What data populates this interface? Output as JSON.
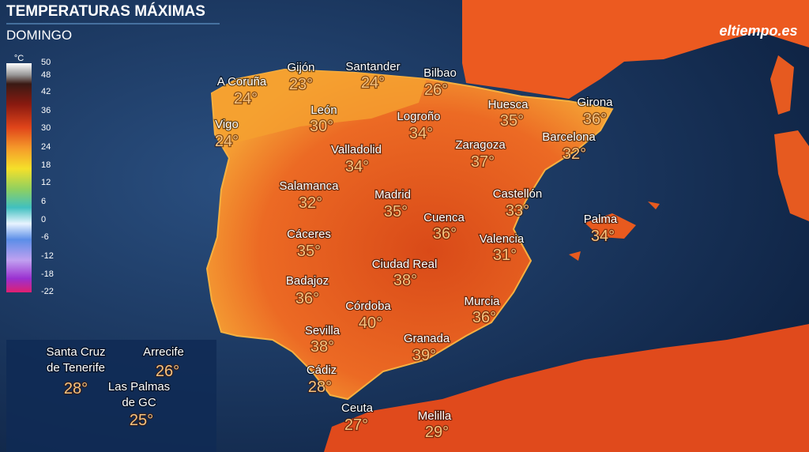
{
  "header": {
    "title": "TEMPERATURAS MÁXIMAS",
    "subtitle": "DOMINGO",
    "logo": "eltiempo.es"
  },
  "legend": {
    "unit": "°C",
    "ticks": [
      50,
      48,
      42,
      36,
      30,
      24,
      18,
      12,
      6,
      0,
      -6,
      -12,
      -18,
      -22
    ]
  },
  "cities": [
    {
      "name": "A Coruña",
      "temp": "24°"
    },
    {
      "name": "Gijón",
      "temp": "23°"
    },
    {
      "name": "Santander",
      "temp": "24°"
    },
    {
      "name": "Bilbao",
      "temp": "26°"
    },
    {
      "name": "Vigo",
      "temp": "24°"
    },
    {
      "name": "León",
      "temp": "30°"
    },
    {
      "name": "Logroño",
      "temp": "34°"
    },
    {
      "name": "Huesca",
      "temp": "35°"
    },
    {
      "name": "Girona",
      "temp": "36°"
    },
    {
      "name": "Barcelona",
      "temp": "32°"
    },
    {
      "name": "Valladolid",
      "temp": "34°"
    },
    {
      "name": "Zaragoza",
      "temp": "37°"
    },
    {
      "name": "Salamanca",
      "temp": "32°"
    },
    {
      "name": "Madrid",
      "temp": "35°"
    },
    {
      "name": "Castellón",
      "temp": "33°"
    },
    {
      "name": "Palma",
      "temp": "34°"
    },
    {
      "name": "Cuenca",
      "temp": "36°"
    },
    {
      "name": "Cáceres",
      "temp": "35°"
    },
    {
      "name": "Valencia",
      "temp": "31°"
    },
    {
      "name": "Ciudad Real",
      "temp": "38°"
    },
    {
      "name": "Badajoz",
      "temp": "36°"
    },
    {
      "name": "Córdoba",
      "temp": "40°"
    },
    {
      "name": "Murcia",
      "temp": "36°"
    },
    {
      "name": "Sevilla",
      "temp": "38°"
    },
    {
      "name": "Granada",
      "temp": "39°"
    },
    {
      "name": "Cádiz",
      "temp": "28°"
    },
    {
      "name": "Ceuta",
      "temp": "27°"
    },
    {
      "name": "Melilla",
      "temp": "29°"
    }
  ],
  "canary_inset": [
    {
      "name": [
        "Santa Cruz",
        "de Tenerife"
      ],
      "temp": "28°"
    },
    {
      "name": [
        "Arrecife"
      ],
      "temp": "26°"
    },
    {
      "name": [
        "Las Palmas",
        "de GC"
      ],
      "temp": "25°"
    }
  ]
}
